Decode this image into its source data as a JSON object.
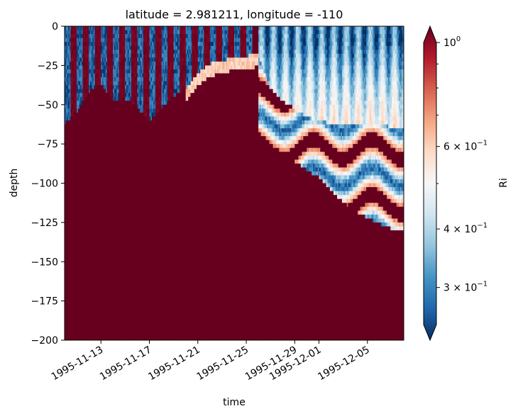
{
  "chart_data": {
    "type": "heatmap",
    "title": "latitude = 2.981211, longitude = -110",
    "xlabel": "time",
    "ylabel": "depth",
    "colorbar_label": "Ri",
    "colormap": "RdBu_r",
    "color_scale": "log",
    "color_limits": [
      0.25,
      1.0
    ],
    "colorbar_extend": "both",
    "x_range": [
      "1995-11-10",
      "1995-12-08"
    ],
    "y_range": [
      -200,
      0
    ],
    "x_ticks": [
      {
        "date": "1995-11-13",
        "label": "1995-11-13"
      },
      {
        "date": "1995-11-17",
        "label": "1995-11-17"
      },
      {
        "date": "1995-11-21",
        "label": "1995-11-21"
      },
      {
        "date": "1995-11-25",
        "label": "1995-11-25"
      },
      {
        "date": "1995-11-29",
        "label": "1995-11-29"
      },
      {
        "date": "1995-12-01",
        "label": "1995-12-01"
      },
      {
        "date": "1995-12-05",
        "label": "1995-12-05"
      }
    ],
    "y_ticks": [
      {
        "value": 0,
        "label": "0"
      },
      {
        "value": -25,
        "label": "−25"
      },
      {
        "value": -50,
        "label": "−50"
      },
      {
        "value": -75,
        "label": "−75"
      },
      {
        "value": -100,
        "label": "−100"
      },
      {
        "value": -125,
        "label": "−125"
      },
      {
        "value": -150,
        "label": "−150"
      },
      {
        "value": -175,
        "label": "−175"
      },
      {
        "value": -200,
        "label": "−200"
      }
    ],
    "colorbar_ticks": [
      {
        "value": 1.0,
        "base": "10",
        "exp": "0"
      },
      {
        "value": 0.6,
        "base": "6 × 10",
        "exp": "−1"
      },
      {
        "value": 0.4,
        "base": "4 × 10",
        "exp": "−1"
      },
      {
        "value": 0.3,
        "base": "3 × 10",
        "exp": "−1"
      }
    ],
    "colorbar_minor_ticks": [
      0.9,
      0.8,
      0.7,
      0.5
    ],
    "mixed_layer_boundary": [
      {
        "date": "1995-11-10",
        "depth": -62
      },
      {
        "date": "1995-11-11",
        "depth": -55
      },
      {
        "date": "1995-11-12",
        "depth": -42
      },
      {
        "date": "1995-11-13",
        "depth": -37
      },
      {
        "date": "1995-11-14",
        "depth": -47
      },
      {
        "date": "1995-11-15",
        "depth": -46
      },
      {
        "date": "1995-11-16",
        "depth": -52
      },
      {
        "date": "1995-11-17",
        "depth": -60
      },
      {
        "date": "1995-11-18",
        "depth": -52
      },
      {
        "date": "1995-11-19",
        "depth": -45
      },
      {
        "date": "1995-11-20",
        "depth": -40
      },
      {
        "date": "1995-11-21",
        "depth": -30
      },
      {
        "date": "1995-11-22",
        "depth": -24
      },
      {
        "date": "1995-11-23",
        "depth": -22
      },
      {
        "date": "1995-11-24",
        "depth": -20
      },
      {
        "date": "1995-11-25",
        "depth": -19
      },
      {
        "date": "1995-11-26",
        "depth": -18
      },
      {
        "date": "1995-11-27",
        "depth": -40
      },
      {
        "date": "1995-11-28",
        "depth": -48
      },
      {
        "date": "1995-11-29",
        "depth": -52
      },
      {
        "date": "1995-11-30",
        "depth": -58
      },
      {
        "date": "1995-12-01",
        "depth": -60
      },
      {
        "date": "1995-12-02",
        "depth": -62
      },
      {
        "date": "1995-12-03",
        "depth": -63
      },
      {
        "date": "1995-12-04",
        "depth": -62
      },
      {
        "date": "1995-12-05",
        "depth": -63
      },
      {
        "date": "1995-12-06",
        "depth": -63
      },
      {
        "date": "1995-12-07",
        "depth": -64
      },
      {
        "date": "1995-12-08",
        "depth": -64
      }
    ],
    "deep_boundary": [
      {
        "date": "1995-11-10",
        "depth": -62
      },
      {
        "date": "1995-11-13",
        "depth": -64
      },
      {
        "date": "1995-11-16",
        "depth": -68
      },
      {
        "date": "1995-11-19",
        "depth": -72
      },
      {
        "date": "1995-11-22",
        "depth": -70
      },
      {
        "date": "1995-11-24",
        "depth": -68
      },
      {
        "date": "1995-11-26",
        "depth": -72
      },
      {
        "date": "1995-11-28",
        "depth": -80
      },
      {
        "date": "1995-11-30",
        "depth": -92
      },
      {
        "date": "1995-12-01",
        "depth": -96
      },
      {
        "date": "1995-12-02",
        "depth": -105
      },
      {
        "date": "1995-12-03",
        "depth": -112
      },
      {
        "date": "1995-12-04",
        "depth": -118
      },
      {
        "date": "1995-12-05",
        "depth": -122
      },
      {
        "date": "1995-12-06",
        "depth": -126
      },
      {
        "date": "1995-12-07",
        "depth": -129
      },
      {
        "date": "1995-12-08",
        "depth": -130
      }
    ]
  }
}
